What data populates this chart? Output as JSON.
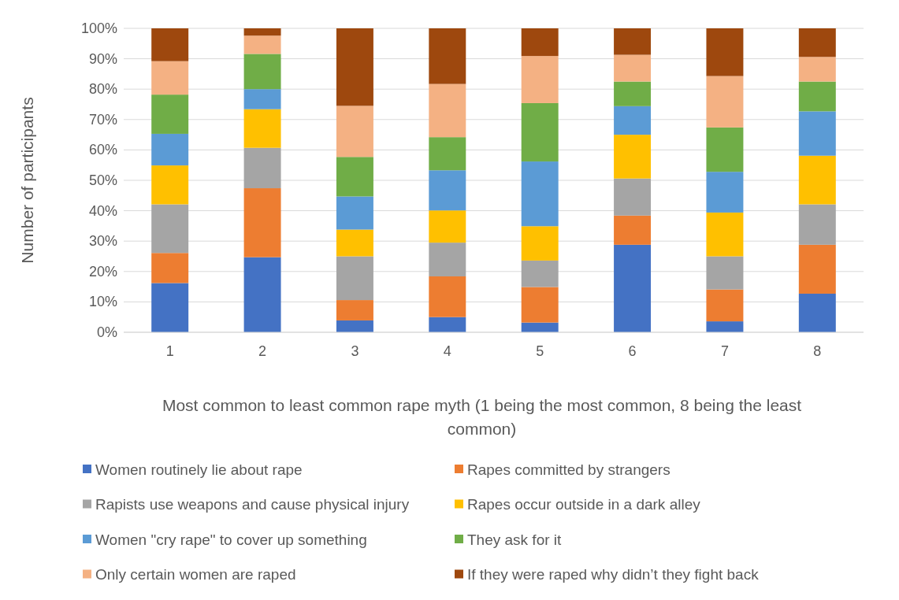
{
  "chart_data": {
    "type": "bar",
    "stacked": true,
    "categories": [
      "1",
      "2",
      "3",
      "4",
      "5",
      "6",
      "7",
      "8"
    ],
    "xlabel": "Most common to least common rape myth (1 being the most common, 8 being the least common)",
    "ylabel": "Number of participants",
    "ylim": [
      0,
      100
    ],
    "yticks": [
      {
        "value": 0,
        "label": "0%"
      },
      {
        "value": 10,
        "label": "10%"
      },
      {
        "value": 20,
        "label": "20%"
      },
      {
        "value": 30,
        "label": "30%"
      },
      {
        "value": 40,
        "label": "40%"
      },
      {
        "value": 50,
        "label": "50%"
      },
      {
        "value": 60,
        "label": "60%"
      },
      {
        "value": 70,
        "label": "70%"
      },
      {
        "value": 80,
        "label": "80%"
      },
      {
        "value": 90,
        "label": "90%"
      },
      {
        "value": 100,
        "label": "100%"
      }
    ],
    "grid": "y",
    "legend": "bottom",
    "series": [
      {
        "name": "Women routinely lie about rape",
        "color": "#4472c4",
        "values": [
          16.2,
          24.7,
          3.9,
          5.0,
          3.2,
          28.8,
          3.6,
          12.7
        ]
      },
      {
        "name": "Rapes committed by strangers",
        "color": "#ed7d31",
        "values": [
          9.9,
          22.7,
          6.7,
          13.4,
          11.7,
          9.6,
          10.5,
          16.1
        ]
      },
      {
        "name": "Rapists use weapons and cause physical injury",
        "color": "#a5a5a5",
        "values": [
          16.0,
          13.3,
          14.4,
          11.1,
          8.7,
          12.2,
          10.9,
          13.3
        ]
      },
      {
        "name": "Rapes occur outside in a dark alley",
        "color": "#ffc000",
        "values": [
          12.8,
          12.7,
          8.8,
          10.6,
          11.3,
          14.4,
          14.4,
          16.0
        ]
      },
      {
        "name": "Women \"cry rape\" to cover up something",
        "color": "#5b9bd5",
        "values": [
          10.4,
          6.6,
          10.9,
          13.2,
          21.3,
          9.4,
          13.4,
          14.6
        ]
      },
      {
        "name": "They ask for it",
        "color": "#70ad47",
        "values": [
          12.9,
          11.6,
          13.0,
          10.9,
          19.2,
          8.1,
          14.6,
          9.8
        ]
      },
      {
        "name": "Only certain women are raped",
        "color": "#f4b183",
        "values": [
          11.0,
          6.0,
          16.8,
          17.5,
          15.5,
          8.8,
          16.9,
          8.1
        ]
      },
      {
        "name": "If they were raped why didn’t they fight back",
        "color": "#9e480e",
        "values": [
          10.8,
          2.4,
          25.5,
          18.3,
          9.1,
          8.7,
          15.7,
          9.4
        ]
      }
    ]
  }
}
